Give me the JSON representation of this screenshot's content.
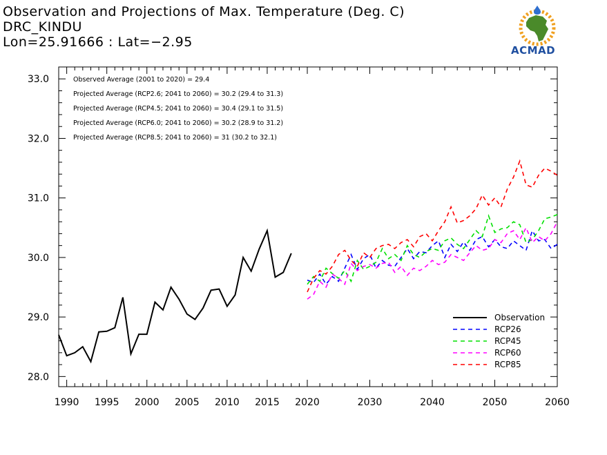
{
  "header": {
    "title": "Observation and Projections of Max. Temperature (Deg. C)",
    "location": "DRC_KINDU",
    "coords": "Lon=25.91666 : Lat=−2.95"
  },
  "logo": {
    "text": "ACMAD",
    "colors": {
      "africa": "#4a8a2a",
      "sun": "#f0a020",
      "drop": "#2f6fd0",
      "text": "#1f4fa0"
    }
  },
  "annotations": [
    "Observed Average (2001 to 2020) = 29.4",
    "Projected Average (RCP2.6; 2041 to 2060) = 30.2 (29.4 to 31.3)",
    "Projected Average (RCP4.5; 2041 to 2060) = 30.4 (29.1 to 31.5)",
    "Projected Average (RCP6.0; 2041 to 2060) = 30.2 (28.9 to 31.2)",
    "Projected Average (RCP8.5; 2041 to 2060) = 31 (30.2 to 32.1)"
  ],
  "chart_data": {
    "type": "line",
    "title": "Observation and Projections of Max. Temperature (Deg. C)",
    "xlabel": "",
    "ylabel": "",
    "x_ticks_left": [
      "1990",
      "1995",
      "2000",
      "2005",
      "2010",
      "2015",
      "2020"
    ],
    "x_ticks_right": [
      "2020",
      "2030",
      "2040",
      "2050",
      "2060"
    ],
    "y_ticks": [
      "28.0",
      "29.0",
      "30.0",
      "31.0",
      "32.0",
      "33.0"
    ],
    "ylim": [
      27.83,
      33.2
    ],
    "legend_position": "bottom-right",
    "series": [
      {
        "name": "Observation",
        "color": "#000000",
        "dash": "solid",
        "x": [
          1989,
          1990,
          1991,
          1992,
          1993,
          1994,
          1995,
          1996,
          1997,
          1998,
          1999,
          2000,
          2001,
          2002,
          2003,
          2004,
          2005,
          2006,
          2007,
          2008,
          2009,
          2010,
          2011,
          2012,
          2013,
          2014,
          2015,
          2016,
          2017,
          2018,
          2019
        ],
        "values": [
          28.7,
          28.35,
          28.4,
          28.5,
          28.25,
          28.75,
          28.76,
          28.82,
          29.33,
          28.38,
          28.71,
          28.71,
          29.25,
          29.12,
          29.5,
          29.3,
          29.05,
          28.96,
          29.15,
          29.45,
          29.47,
          29.18,
          29.37,
          30.0,
          29.77,
          30.14,
          30.45,
          29.67,
          29.75,
          30.07,
          null
        ]
      },
      {
        "name": "RCP26",
        "color": "#0000ff",
        "dash": "6,5",
        "x": [
          2020,
          2021,
          2022,
          2023,
          2024,
          2025,
          2026,
          2027,
          2028,
          2029,
          2030,
          2031,
          2032,
          2033,
          2034,
          2035,
          2036,
          2037,
          2038,
          2039,
          2040,
          2041,
          2042,
          2043,
          2044,
          2045,
          2046,
          2047,
          2048,
          2049,
          2050,
          2051,
          2052,
          2053,
          2054,
          2055,
          2056,
          2057,
          2058,
          2059,
          2060
        ],
        "values": [
          29.62,
          29.58,
          29.72,
          29.55,
          29.68,
          29.6,
          29.82,
          30.05,
          29.8,
          29.98,
          30.05,
          29.82,
          29.95,
          29.87,
          29.85,
          30.0,
          30.15,
          29.98,
          30.1,
          30.08,
          30.2,
          30.28,
          30.0,
          30.22,
          30.1,
          30.26,
          30.12,
          30.3,
          30.35,
          30.18,
          30.3,
          30.18,
          30.15,
          30.28,
          30.2,
          30.12,
          30.45,
          30.28,
          30.3,
          30.15,
          30.22
        ]
      },
      {
        "name": "RCP45",
        "color": "#00e000",
        "dash": "6,5",
        "x": [
          2020,
          2021,
          2022,
          2023,
          2024,
          2025,
          2026,
          2027,
          2028,
          2029,
          2030,
          2031,
          2032,
          2033,
          2034,
          2035,
          2036,
          2037,
          2038,
          2039,
          2040,
          2041,
          2042,
          2043,
          2044,
          2045,
          2046,
          2047,
          2048,
          2049,
          2050,
          2051,
          2052,
          2053,
          2054,
          2055,
          2056,
          2057,
          2058,
          2059,
          2060
        ],
        "values": [
          29.55,
          29.68,
          29.6,
          29.82,
          29.73,
          29.65,
          29.78,
          29.6,
          29.95,
          29.8,
          29.85,
          29.92,
          30.15,
          29.98,
          30.05,
          29.95,
          30.2,
          30.05,
          30.0,
          30.1,
          30.15,
          30.12,
          30.28,
          30.33,
          30.22,
          30.15,
          30.3,
          30.45,
          30.35,
          30.7,
          30.42,
          30.48,
          30.5,
          30.6,
          30.55,
          30.25,
          30.3,
          30.45,
          30.65,
          30.68,
          30.72
        ]
      },
      {
        "name": "RCP60",
        "color": "#ff00ff",
        "dash": "6,5",
        "x": [
          2020,
          2021,
          2022,
          2023,
          2024,
          2025,
          2026,
          2027,
          2028,
          2029,
          2030,
          2031,
          2032,
          2033,
          2034,
          2035,
          2036,
          2037,
          2038,
          2039,
          2040,
          2041,
          2042,
          2043,
          2044,
          2045,
          2046,
          2047,
          2048,
          2049,
          2050,
          2051,
          2052,
          2053,
          2054,
          2055,
          2056,
          2057,
          2058,
          2059,
          2060
        ],
        "values": [
          29.3,
          29.38,
          29.6,
          29.5,
          29.72,
          29.65,
          29.55,
          29.9,
          29.78,
          29.85,
          29.88,
          29.82,
          29.9,
          29.92,
          29.75,
          29.85,
          29.7,
          29.82,
          29.78,
          29.85,
          29.95,
          29.88,
          29.92,
          30.05,
          30.0,
          29.95,
          30.08,
          30.2,
          30.12,
          30.15,
          30.3,
          30.25,
          30.4,
          30.45,
          30.3,
          30.5,
          30.25,
          30.35,
          30.28,
          30.4,
          30.6
        ]
      },
      {
        "name": "RCP85",
        "color": "#ff0000",
        "dash": "6,5",
        "x": [
          2020,
          2021,
          2022,
          2023,
          2024,
          2025,
          2026,
          2027,
          2028,
          2029,
          2030,
          2031,
          2032,
          2033,
          2034,
          2035,
          2036,
          2037,
          2038,
          2039,
          2040,
          2041,
          2042,
          2043,
          2044,
          2045,
          2046,
          2047,
          2048,
          2049,
          2050,
          2051,
          2052,
          2053,
          2054,
          2055,
          2056,
          2057,
          2058,
          2059,
          2060
        ],
        "values": [
          29.42,
          29.65,
          29.78,
          29.72,
          29.85,
          30.05,
          30.12,
          29.95,
          29.85,
          30.08,
          30.0,
          30.15,
          30.2,
          30.22,
          30.15,
          30.25,
          30.3,
          30.18,
          30.35,
          30.4,
          30.28,
          30.45,
          30.6,
          30.85,
          30.58,
          30.62,
          30.7,
          30.82,
          31.05,
          30.88,
          31.0,
          30.85,
          31.15,
          31.35,
          31.62,
          31.22,
          31.18,
          31.38,
          31.5,
          31.45,
          31.38
        ]
      }
    ]
  }
}
